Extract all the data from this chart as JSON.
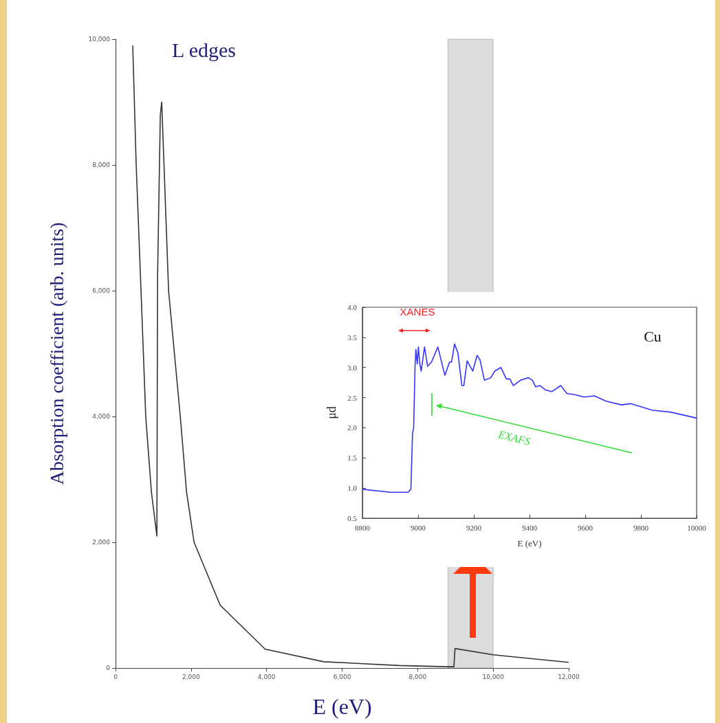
{
  "chart_data": [
    {
      "type": "line",
      "title": "L edges",
      "xlabel": "E (eV)",
      "ylabel": "Absorption coefficient (arb. units)",
      "series": [
        {
          "color": "#333333",
          "x": [
            456,
            547,
            675,
            800,
            950,
            1095,
            1113,
            1186,
            1223,
            1405,
            1715,
            1880,
            2080,
            2770,
            3960,
            5510,
            7520,
            8800,
            8960,
            8990,
            10000,
            12000
          ],
          "values": [
            9900,
            8000,
            6000,
            4000,
            2800,
            2100,
            6200,
            8800,
            9000,
            6000,
            4000,
            2800,
            2000,
            1000,
            300,
            100,
            40,
            20,
            20,
            310,
            210,
            90
          ]
        }
      ],
      "xlim": [
        0,
        12000
      ],
      "xticks": [
        0,
        {
          "value": 2000,
          "label": "2,000"
        },
        {
          "value": 4000,
          "label": "4,000"
        },
        {
          "value": 6000,
          "label": "6,000"
        },
        {
          "value": 8000,
          "label": "8,000"
        },
        {
          "value": 10000,
          "label": "10,000"
        },
        {
          "value": 12000,
          "label": "12,000"
        }
      ],
      "ylim": [
        0,
        10000
      ],
      "yticks": [
        0,
        {
          "value": 2000,
          "label": "2,000"
        },
        {
          "value": 4000,
          "label": "4,000"
        },
        {
          "value": 6000,
          "label": "6,000"
        },
        {
          "value": 8000,
          "label": "8,000"
        },
        {
          "value": 10000,
          "label": "10,000"
        }
      ],
      "bands": [
        {
          "axis": "x",
          "from": 8800,
          "to": 10000,
          "color": "#9a9a9a"
        }
      ],
      "grid": false,
      "marker": "none",
      "line_style": "solid"
    },
    {
      "type": "line",
      "xlabel": "E (eV)",
      "ylabel": "μd",
      "series": [
        {
          "color": "#3333ff",
          "x": [
            8800,
            8900,
            8964,
            8974,
            8980,
            8984,
            8989,
            8992,
            8997,
            9001,
            9006,
            9011,
            9023,
            9034,
            9048,
            9071,
            9096,
            9113,
            9120,
            9131,
            9143,
            9157,
            9164,
            9176,
            9196,
            9212,
            9222,
            9238,
            9261,
            9275,
            9297,
            9317,
            9329,
            9342,
            9368,
            9396,
            9410,
            9422,
            9438,
            9456,
            9480,
            9512,
            9534,
            9563,
            9596,
            9633,
            9675,
            9730,
            9763,
            9842,
            9907,
            10000
          ],
          "values": [
            0.98,
            0.93,
            0.93,
            0.98,
            1.91,
            2.0,
            3.02,
            3.3,
            3.06,
            3.34,
            3.06,
            2.94,
            3.34,
            3.02,
            3.09,
            3.34,
            2.87,
            3.09,
            3.09,
            3.39,
            3.24,
            2.7,
            2.7,
            3.11,
            2.94,
            3.2,
            3.13,
            2.79,
            2.83,
            2.94,
            3.0,
            2.81,
            2.81,
            2.7,
            2.79,
            2.83,
            2.79,
            2.68,
            2.7,
            2.63,
            2.6,
            2.7,
            2.57,
            2.55,
            2.51,
            2.53,
            2.44,
            2.38,
            2.4,
            2.29,
            2.26,
            2.16
          ]
        }
      ],
      "xlim": [
        8800,
        10000
      ],
      "xticks": [
        8800,
        9000,
        9200,
        9400,
        9600,
        9800,
        10000
      ],
      "ylim": [
        0.5,
        4.0
      ],
      "yticks": [
        0.5,
        {
          "value": 1,
          "label": "1.0"
        },
        1.5,
        {
          "value": 2,
          "label": "2.0"
        },
        2.5,
        {
          "value": 3,
          "label": "3.0"
        },
        3.5,
        {
          "value": 4,
          "label": "4.0"
        }
      ],
      "annotations": [
        "XANES",
        "EXAFS",
        "Cu"
      ],
      "grid": false,
      "marker": "none",
      "line_style": "solid"
    }
  ]
}
